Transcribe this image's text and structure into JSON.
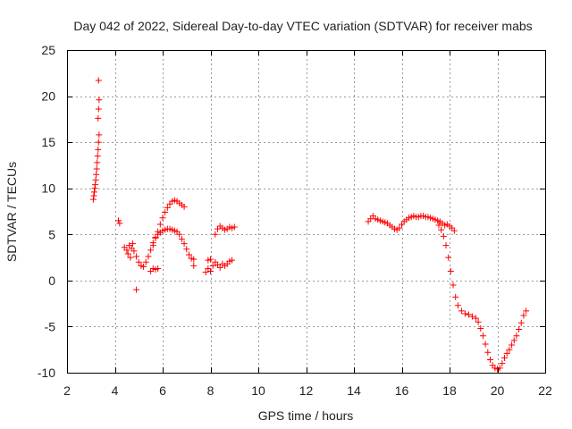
{
  "chart_data": {
    "type": "scatter",
    "title": "Day 042 of 2022, Sidereal Day-to-day VTEC variation (SDTVAR) for receiver mabs",
    "xlabel": "GPS time / hours",
    "ylabel": "SDTVAR / TECUs",
    "xlim": [
      2,
      22
    ],
    "ylim": [
      -10,
      25
    ],
    "xticks": [
      2,
      4,
      6,
      8,
      10,
      12,
      14,
      16,
      18,
      20,
      22
    ],
    "yticks": [
      -10,
      -5,
      0,
      5,
      10,
      15,
      20,
      25
    ],
    "xtick_labels": [
      "2",
      "4",
      "6",
      "8",
      "10",
      "12",
      "14",
      "16",
      "18",
      "20",
      "22"
    ],
    "ytick_labels": [
      "-10",
      "-5",
      "0",
      "5",
      "10",
      "15",
      "20",
      "25"
    ],
    "grid": true,
    "marker": "+",
    "series": [
      {
        "name": "SDTVAR",
        "color": "#ff0000",
        "points": [
          [
            3.1,
            8.8
          ],
          [
            3.12,
            9.2
          ],
          [
            3.14,
            9.6
          ],
          [
            3.16,
            10.0
          ],
          [
            3.18,
            10.4
          ],
          [
            3.2,
            10.9
          ],
          [
            3.22,
            11.5
          ],
          [
            3.24,
            12.1
          ],
          [
            3.26,
            12.8
          ],
          [
            3.28,
            13.5
          ],
          [
            3.3,
            14.2
          ],
          [
            3.32,
            15.0
          ],
          [
            3.34,
            15.8
          ],
          [
            3.3,
            17.6
          ],
          [
            3.32,
            18.6
          ],
          [
            3.34,
            19.6
          ],
          [
            3.32,
            21.7
          ],
          [
            4.15,
            6.5
          ],
          [
            4.2,
            6.2
          ],
          [
            4.4,
            3.6
          ],
          [
            4.5,
            3.3
          ],
          [
            4.55,
            2.9
          ],
          [
            4.6,
            3.8
          ],
          [
            4.65,
            2.5
          ],
          [
            4.7,
            3.5
          ],
          [
            4.75,
            4.0
          ],
          [
            4.8,
            3.2
          ],
          [
            4.9,
            2.6
          ],
          [
            5.0,
            2.0
          ],
          [
            5.1,
            1.6
          ],
          [
            5.2,
            1.5
          ],
          [
            5.3,
            2.0
          ],
          [
            5.4,
            2.6
          ],
          [
            5.5,
            3.3
          ],
          [
            5.6,
            4.1
          ],
          [
            5.7,
            4.7
          ],
          [
            5.8,
            5.0
          ],
          [
            5.9,
            5.2
          ],
          [
            6.0,
            5.4
          ],
          [
            6.1,
            5.5
          ],
          [
            6.2,
            5.6
          ],
          [
            6.3,
            5.6
          ],
          [
            6.4,
            5.5
          ],
          [
            6.5,
            5.4
          ],
          [
            6.6,
            5.3
          ],
          [
            6.7,
            5.0
          ],
          [
            6.8,
            4.5
          ],
          [
            6.9,
            4.0
          ],
          [
            7.0,
            3.4
          ],
          [
            7.1,
            2.8
          ],
          [
            7.2,
            2.4
          ],
          [
            7.3,
            2.3
          ],
          [
            4.9,
            -1.0
          ],
          [
            5.5,
            1.0
          ],
          [
            5.6,
            1.3
          ],
          [
            5.7,
            1.2
          ],
          [
            5.8,
            1.3
          ],
          [
            5.6,
            3.8
          ],
          [
            5.7,
            4.6
          ],
          [
            5.8,
            5.3
          ],
          [
            5.9,
            6.1
          ],
          [
            6.0,
            6.8
          ],
          [
            6.1,
            7.4
          ],
          [
            6.2,
            7.9
          ],
          [
            6.3,
            8.3
          ],
          [
            6.4,
            8.6
          ],
          [
            6.5,
            8.7
          ],
          [
            6.6,
            8.6
          ],
          [
            6.7,
            8.4
          ],
          [
            6.8,
            8.2
          ],
          [
            6.9,
            8.0
          ],
          [
            7.3,
            1.6
          ],
          [
            7.8,
            0.9
          ],
          [
            7.9,
            1.3
          ],
          [
            8.0,
            1.0
          ],
          [
            8.1,
            1.6
          ],
          [
            8.2,
            2.0
          ],
          [
            8.3,
            1.7
          ],
          [
            8.4,
            1.4
          ],
          [
            8.5,
            1.8
          ],
          [
            8.6,
            1.6
          ],
          [
            8.7,
            1.8
          ],
          [
            8.8,
            2.1
          ],
          [
            8.9,
            2.2
          ],
          [
            7.9,
            2.2
          ],
          [
            8.0,
            2.3
          ],
          [
            8.2,
            5.0
          ],
          [
            8.3,
            5.6
          ],
          [
            8.4,
            5.9
          ],
          [
            8.5,
            5.7
          ],
          [
            8.6,
            5.5
          ],
          [
            8.7,
            5.6
          ],
          [
            8.8,
            5.8
          ],
          [
            8.9,
            5.7
          ],
          [
            9.0,
            5.8
          ],
          [
            14.6,
            6.4
          ],
          [
            14.7,
            6.7
          ],
          [
            14.8,
            7.0
          ],
          [
            14.9,
            6.7
          ],
          [
            15.0,
            6.6
          ],
          [
            15.1,
            6.5
          ],
          [
            15.2,
            6.4
          ],
          [
            15.3,
            6.3
          ],
          [
            15.4,
            6.2
          ],
          [
            15.5,
            6.0
          ],
          [
            15.6,
            5.8
          ],
          [
            15.7,
            5.6
          ],
          [
            15.8,
            5.5
          ],
          [
            15.9,
            5.7
          ],
          [
            16.0,
            6.1
          ],
          [
            16.1,
            6.4
          ],
          [
            16.2,
            6.6
          ],
          [
            16.3,
            6.8
          ],
          [
            16.4,
            6.9
          ],
          [
            16.5,
            7.0
          ],
          [
            16.6,
            6.9
          ],
          [
            16.7,
            6.9
          ],
          [
            16.8,
            7.0
          ],
          [
            16.9,
            7.0
          ],
          [
            17.0,
            6.9
          ],
          [
            17.1,
            6.9
          ],
          [
            17.2,
            6.8
          ],
          [
            17.3,
            6.7
          ],
          [
            17.4,
            6.6
          ],
          [
            17.5,
            6.5
          ],
          [
            17.6,
            6.4
          ],
          [
            17.7,
            6.2
          ],
          [
            17.8,
            6.0
          ],
          [
            17.9,
            6.1
          ],
          [
            18.0,
            5.9
          ],
          [
            18.1,
            5.7
          ],
          [
            18.2,
            5.4
          ],
          [
            17.55,
            6.0
          ],
          [
            17.65,
            5.5
          ],
          [
            17.75,
            4.8
          ],
          [
            17.85,
            3.8
          ],
          [
            17.95,
            2.5
          ],
          [
            18.05,
            1.0
          ],
          [
            18.15,
            -0.5
          ],
          [
            18.25,
            -1.8
          ],
          [
            18.35,
            -2.7
          ],
          [
            18.5,
            -3.3
          ],
          [
            18.65,
            -3.6
          ],
          [
            18.8,
            -3.7
          ],
          [
            18.95,
            -3.9
          ],
          [
            19.1,
            -4.1
          ],
          [
            19.2,
            -4.5
          ],
          [
            19.3,
            -5.2
          ],
          [
            19.4,
            -6.0
          ],
          [
            19.5,
            -6.9
          ],
          [
            19.6,
            -7.8
          ],
          [
            19.7,
            -8.6
          ],
          [
            19.8,
            -9.2
          ],
          [
            19.9,
            -9.5
          ],
          [
            20.0,
            -9.6
          ],
          [
            20.1,
            -9.5
          ],
          [
            20.2,
            -9.0
          ],
          [
            20.3,
            -8.4
          ],
          [
            20.4,
            -7.9
          ],
          [
            20.5,
            -7.5
          ],
          [
            20.6,
            -7.0
          ],
          [
            20.7,
            -6.5
          ],
          [
            20.8,
            -6.0
          ],
          [
            20.9,
            -5.3
          ],
          [
            21.0,
            -4.6
          ],
          [
            21.1,
            -3.8
          ],
          [
            21.2,
            -3.3
          ]
        ]
      }
    ]
  }
}
